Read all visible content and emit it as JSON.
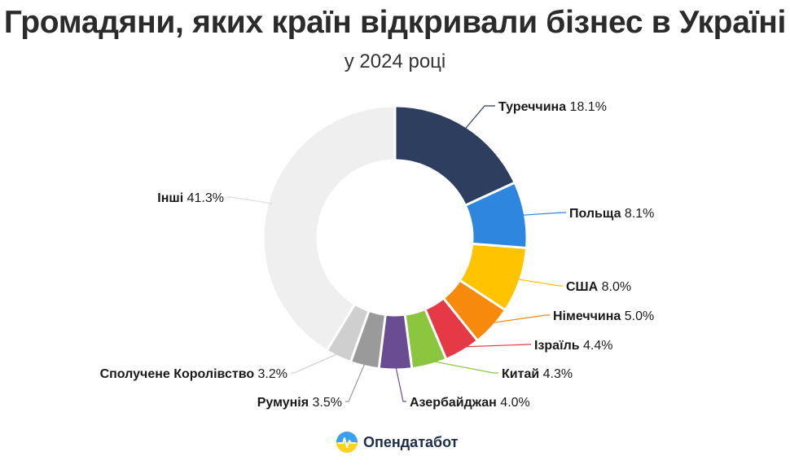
{
  "title": "Громадяни, яких країн відкривали бізнес в Україні",
  "subtitle": "у 2024 році",
  "brand": {
    "name": "Опендатабот",
    "logo_icon": "opendatabot-logo-icon"
  },
  "chart_data": {
    "type": "pie",
    "donut": true,
    "title": "Громадяни, яких країн відкривали бізнес в Україні",
    "subtitle": "у 2024 році",
    "slices": [
      {
        "label": "Туреччина",
        "value": 18.1,
        "display": "18.1%",
        "color": "#2d3e5e"
      },
      {
        "label": "Польща",
        "value": 8.1,
        "display": "8.1%",
        "color": "#2e86de"
      },
      {
        "label": "США",
        "value": 8.0,
        "display": "8.0%",
        "color": "#ffc300"
      },
      {
        "label": "Німеччина",
        "value": 5.0,
        "display": "5.0%",
        "color": "#f7890c"
      },
      {
        "label": "Ізраїль",
        "value": 4.4,
        "display": "4.4%",
        "color": "#e63946"
      },
      {
        "label": "Китай",
        "value": 4.3,
        "display": "4.3%",
        "color": "#8cc63f"
      },
      {
        "label": "Азербайджан",
        "value": 4.0,
        "display": "4.0%",
        "color": "#6a4c93"
      },
      {
        "label": "Румунія",
        "value": 3.5,
        "display": "3.5%",
        "color": "#9a9a9a"
      },
      {
        "label": "Сполучене Королівство",
        "value": 3.2,
        "display": "3.2%",
        "color": "#cfcfcf"
      },
      {
        "label": "Інші",
        "value": 41.3,
        "display": "41.3%",
        "color": "#efefef"
      }
    ]
  }
}
